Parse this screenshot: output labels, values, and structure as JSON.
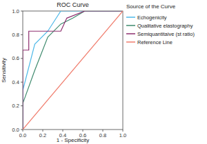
{
  "chart_data": {
    "type": "line",
    "title": "ROC Curve",
    "x_label": "1 - Specificity",
    "y_label": "Sensitivity",
    "legend": "right",
    "legend_title": "Source of the Curve",
    "grid": false,
    "xlim": [
      0,
      1
    ],
    "ylim": [
      0,
      1
    ],
    "xticks": [
      {
        "value": 0,
        "label": "0.0"
      },
      0.2,
      0.4,
      0.6,
      0.8,
      {
        "value": 1,
        "label": "1.0"
      }
    ],
    "yticks": [
      {
        "value": 0,
        "label": "0.0"
      },
      0.2,
      0.4,
      0.6,
      0.8,
      {
        "value": 1,
        "label": "1.0"
      }
    ],
    "series": [
      {
        "name": "Echogenicity",
        "color": "#4db8e8",
        "x": [
          0,
          0,
          0.12,
          0.25,
          0.38,
          1
        ],
        "values": [
          0,
          0.33,
          0.72,
          0.83,
          1,
          1
        ]
      },
      {
        "name": "Qualitative elastography",
        "color": "#3f8a6e",
        "x": [
          0,
          0,
          0.12,
          0.25,
          0.38,
          0.5,
          0.62,
          1
        ],
        "values": [
          0,
          0.22,
          0.5,
          0.78,
          0.89,
          0.94,
          1,
          1
        ]
      },
      {
        "name": "Semiquantitaive (st ratio)",
        "color": "#8e2f6f",
        "x": [
          0,
          0,
          0.06,
          0.06,
          0.38,
          0.44,
          0.62,
          1
        ],
        "values": [
          0,
          0.67,
          0.67,
          0.83,
          0.83,
          0.94,
          1,
          1
        ]
      },
      {
        "name": "Reference Line",
        "color": "#f07c6c",
        "line_style": "solid",
        "x": [
          0,
          1
        ],
        "values": [
          0,
          1
        ]
      }
    ]
  }
}
